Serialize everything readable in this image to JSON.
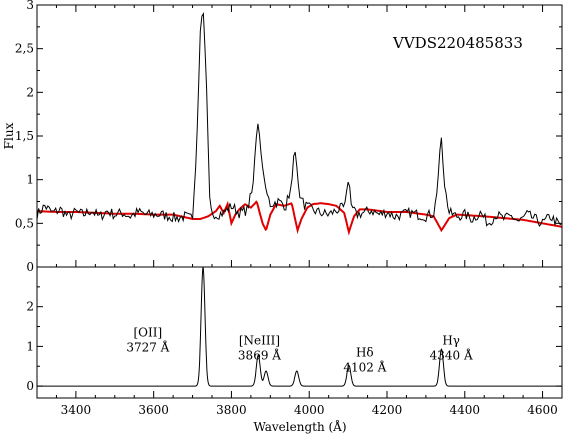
{
  "chart_data": [
    {
      "type": "line",
      "panel": "top",
      "title": "VVDS220485833",
      "xlabel": "",
      "ylabel": "Flux",
      "xlim": [
        3300,
        4650
      ],
      "ylim": [
        0,
        3
      ],
      "y_ticks": [
        0,
        0.5,
        1,
        1.5,
        2,
        2.5,
        3
      ],
      "y_tick_labels": [
        "0",
        "0,5",
        "1",
        "1,5",
        "2",
        "2,5",
        "3"
      ],
      "grid": false,
      "series": [
        {
          "name": "",
          "color": "#000000",
          "continuum": 0.6,
          "x": [
            3300,
            3320,
            3340,
            3360,
            3380,
            3400,
            3420,
            3440,
            3460,
            3480,
            3500,
            3520,
            3540,
            3560,
            3580,
            3600,
            3620,
            3640,
            3660,
            3680,
            3700,
            3710,
            3720,
            3727,
            3735,
            3745,
            3760,
            3780,
            3800,
            3820,
            3840,
            3855,
            3862,
            3869,
            3878,
            3890,
            3900,
            3920,
            3940,
            3955,
            3962,
            3968,
            3975,
            3990,
            4010,
            4030,
            4050,
            4070,
            4090,
            4097,
            4102,
            4108,
            4120,
            4140,
            4160,
            4180,
            4200,
            4220,
            4240,
            4260,
            4280,
            4300,
            4320,
            4330,
            4335,
            4340,
            4347,
            4360,
            4380,
            4400,
            4420,
            4440,
            4460,
            4480,
            4500,
            4520,
            4540,
            4560,
            4580,
            4600,
            4620,
            4650
          ],
          "y": [
            0.6,
            0.7,
            0.62,
            0.66,
            0.58,
            0.63,
            0.6,
            0.65,
            0.57,
            0.64,
            0.6,
            0.62,
            0.58,
            0.63,
            0.6,
            0.6,
            0.6,
            0.58,
            0.56,
            0.58,
            0.55,
            1.3,
            2.7,
            3.0,
            2.2,
            0.65,
            0.6,
            0.62,
            0.7,
            0.62,
            0.65,
            0.9,
            1.4,
            1.68,
            1.2,
            0.85,
            0.72,
            0.75,
            0.7,
            0.95,
            1.4,
            1.15,
            0.8,
            0.7,
            0.65,
            0.62,
            0.6,
            0.65,
            0.68,
            0.9,
            1.02,
            0.72,
            0.6,
            0.62,
            0.65,
            0.6,
            0.63,
            0.58,
            0.6,
            0.62,
            0.6,
            0.58,
            0.62,
            0.9,
            1.3,
            1.48,
            0.95,
            0.62,
            0.58,
            0.6,
            0.55,
            0.62,
            0.5,
            0.6,
            0.55,
            0.58,
            0.52,
            0.6,
            0.55,
            0.5,
            0.58,
            0.45
          ]
        },
        {
          "name": "",
          "color": "#e00000",
          "x": [
            3300,
            3350,
            3400,
            3450,
            3500,
            3550,
            3600,
            3650,
            3680,
            3700,
            3720,
            3740,
            3760,
            3770,
            3780,
            3790,
            3800,
            3810,
            3820,
            3835,
            3850,
            3865,
            3880,
            3889,
            3900,
            3915,
            3935,
            3955,
            3970,
            3980,
            3995,
            4010,
            4030,
            4050,
            4070,
            4090,
            4102,
            4115,
            4130,
            4150,
            4200,
            4250,
            4300,
            4320,
            4340,
            4360,
            4380,
            4450,
            4500,
            4550,
            4600,
            4650
          ],
          "y": [
            0.64,
            0.63,
            0.63,
            0.62,
            0.61,
            0.61,
            0.6,
            0.6,
            0.57,
            0.55,
            0.55,
            0.58,
            0.64,
            0.7,
            0.62,
            0.72,
            0.5,
            0.6,
            0.66,
            0.72,
            0.68,
            0.75,
            0.5,
            0.42,
            0.6,
            0.72,
            0.7,
            0.73,
            0.42,
            0.55,
            0.68,
            0.72,
            0.73,
            0.72,
            0.7,
            0.62,
            0.4,
            0.58,
            0.66,
            0.66,
            0.63,
            0.63,
            0.6,
            0.58,
            0.42,
            0.56,
            0.6,
            0.58,
            0.56,
            0.54,
            0.5,
            0.46
          ]
        }
      ]
    },
    {
      "type": "line",
      "panel": "bottom",
      "xlabel": "Wavelength (Å)",
      "ylabel": "",
      "xlim": [
        3300,
        4650
      ],
      "ylim": [
        -0.3,
        3
      ],
      "x_ticks": [
        3400,
        3600,
        3800,
        4000,
        4200,
        4400,
        4600
      ],
      "x_tick_labels": [
        "3400",
        "3600",
        "3800",
        "4000",
        "4200",
        "4400",
        "4600"
      ],
      "y_ticks": [
        0,
        1,
        2
      ],
      "y_tick_labels": [
        "0",
        "1",
        "2"
      ],
      "grid": false,
      "lines": [
        {
          "center": 3727,
          "height": 3.0,
          "width": 5
        },
        {
          "center": 3869,
          "height": 0.78,
          "width": 5
        },
        {
          "center": 3889,
          "height": 0.38,
          "width": 5
        },
        {
          "center": 3968,
          "height": 0.38,
          "width": 5
        },
        {
          "center": 4102,
          "height": 0.52,
          "width": 5
        },
        {
          "center": 4340,
          "height": 0.93,
          "width": 5
        }
      ],
      "annotations": [
        {
          "name": "[OII]",
          "wavelength": "3727 Å",
          "anchor_x": 3585,
          "anchor_y": 1.25
        },
        {
          "name": "[NeIII]",
          "wavelength": "3869 Å",
          "anchor_x": 3872,
          "anchor_y": 1.05
        },
        {
          "name": "Hδ",
          "wavelength": "4102 Å",
          "anchor_x": 4143,
          "anchor_y": 0.75
        },
        {
          "name": "Hγ",
          "wavelength": "4340 Å",
          "anchor_x": 4365,
          "anchor_y": 1.05
        }
      ]
    }
  ]
}
